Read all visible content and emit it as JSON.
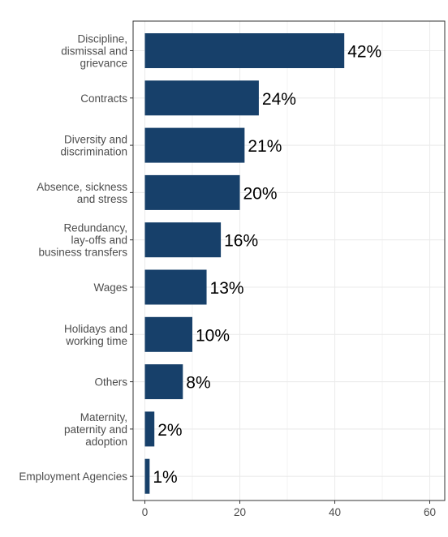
{
  "chart_data": {
    "type": "bar",
    "orientation": "horizontal",
    "title": "",
    "xlabel": "",
    "ylabel": "",
    "categories": [
      "Discipline,\ndismissal and\ngrievance",
      "Contracts",
      "Diversity and\ndiscrimination",
      "Absence, sickness\nand stress",
      "Redundancy,\nlay-offs and\nbusiness transfers",
      "Wages",
      "Holidays and\nworking time",
      "Others",
      "Maternity,\npaternity and\nadoption",
      "Employment Agencies"
    ],
    "values": [
      42,
      24,
      21,
      20,
      16,
      13,
      10,
      8,
      2,
      1
    ],
    "data_labels": [
      "42%",
      "24%",
      "21%",
      "20%",
      "16%",
      "13%",
      "10%",
      "8%",
      "2%",
      "1%"
    ],
    "xlim": [
      0,
      60
    ],
    "x_ticks": [
      0,
      20,
      40,
      60
    ],
    "x_tick_labels": [
      "0",
      "20",
      "40",
      "60"
    ],
    "grid": true,
    "legend": "none",
    "colors": {
      "bar": "#17406a",
      "grid": "#ebebeb",
      "panel_border": "#333333",
      "label_text": "#4d4d4d",
      "value_text": "#000000"
    }
  }
}
